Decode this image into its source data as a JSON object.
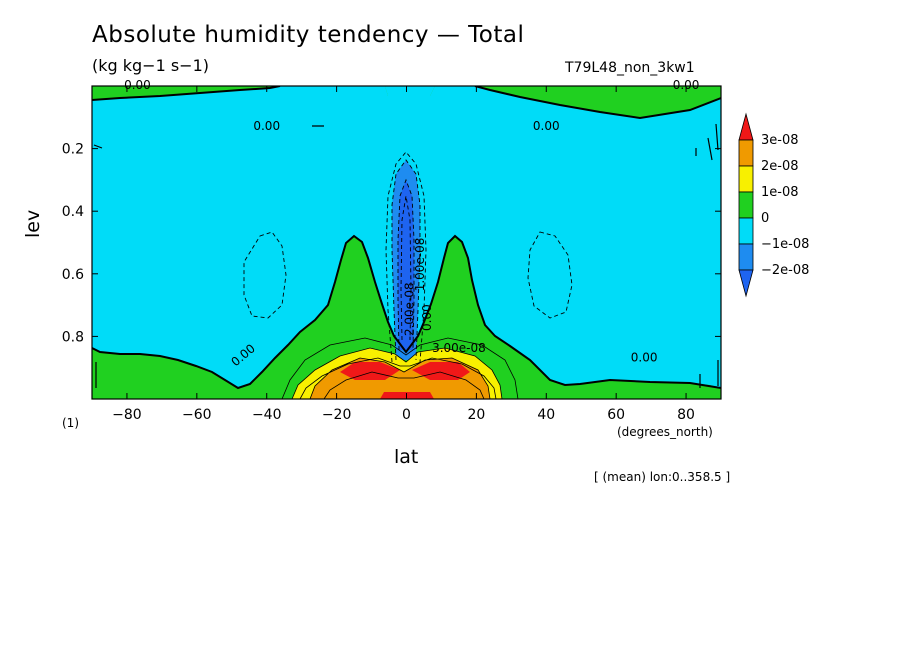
{
  "chart_data": {
    "type": "heatmap",
    "title": "Absolute humidity tendency — Total",
    "subtitle": "(kg kg−1 s−1)",
    "run_label": "T79L48_non_3kw1",
    "xlabel": "lat",
    "x_units": "(degrees_north)",
    "ylabel": "lev",
    "footnote": "(1)",
    "mean_note": "[ (mean) lon:0..358.5 ]",
    "xlim": [
      -90,
      90
    ],
    "ylim": [
      1.0,
      0.0
    ],
    "x_ticks": [
      -80,
      -60,
      -40,
      -20,
      0,
      20,
      40,
      60,
      80
    ],
    "y_ticks": [
      0.2,
      0.4,
      0.6,
      0.8
    ],
    "colorbar": {
      "labels": [
        "3e-08",
        "2e-08",
        "1e-08",
        "0",
        "−1e-08",
        "−2e-08"
      ],
      "bins": [
        {
          "range": "> 3e-08",
          "color": "#f01818"
        },
        {
          "range": "2e-08 – 3e-08",
          "color": "#f09a00"
        },
        {
          "range": "1e-08 – 2e-08",
          "color": "#f8f000"
        },
        {
          "range": "0 – 1e-08",
          "color": "#20d020"
        },
        {
          "range": "−1e-08 – 0",
          "color": "#00dcf8"
        },
        {
          "range": "−2e-08 – −1e-08",
          "color": "#1e8cf0"
        },
        {
          "range": "< −2e-08",
          "color": "#1e64f0"
        }
      ]
    },
    "contour_labels": [
      {
        "text": "0.00",
        "lat": -77,
        "lev": 0.01
      },
      {
        "text": "0.00",
        "lat": 80,
        "lev": 0.01
      },
      {
        "text": "0.00",
        "lat": -40,
        "lev": 0.14
      },
      {
        "text": "0.00",
        "lat": 40,
        "lev": 0.14
      },
      {
        "text": "0.00",
        "lat": -46,
        "lev": 0.87
      },
      {
        "text": "0.00",
        "lat": 68,
        "lev": 0.88
      },
      {
        "text": "-2.00e-08",
        "lat": 2,
        "lev": 0.72
      },
      {
        "text": "0.00",
        "lat": 7,
        "lev": 0.74
      },
      {
        "text": "1.00e-08",
        "lat": 5,
        "lev": 0.57
      },
      {
        "text": "3.00e-08",
        "lat": 15,
        "lev": 0.85
      }
    ]
  }
}
